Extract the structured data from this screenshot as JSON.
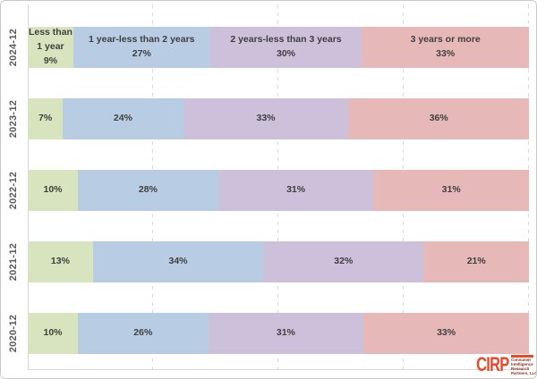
{
  "chart_data": {
    "type": "bar",
    "orientation": "horizontal",
    "stacked": true,
    "grid": "dashed-vertical",
    "gridlines_pct": [
      25,
      50,
      75,
      100
    ],
    "xlim": [
      0,
      100
    ],
    "value_suffix": "%",
    "categories": [
      "Less than 1 year",
      "1 year-less than 2 years",
      "2 years-less than 3 years",
      "3 years or more"
    ],
    "colors": [
      "#d7e4bd",
      "#b8cce4",
      "#ccc0da",
      "#e6b9b8"
    ],
    "rows": [
      {
        "label": "2024-12",
        "values": [
          9,
          27,
          30,
          33
        ]
      },
      {
        "label": "2023-12",
        "values": [
          7,
          24,
          33,
          36
        ]
      },
      {
        "label": "2022-12",
        "values": [
          10,
          28,
          31,
          31
        ]
      },
      {
        "label": "2021-12",
        "values": [
          13,
          34,
          32,
          21
        ]
      },
      {
        "label": "2020-12",
        "values": [
          10,
          26,
          31,
          33
        ]
      }
    ],
    "category_labels_shown_on_first_row_only": true
  },
  "branding": {
    "logo_text": "CIRP",
    "logo_color": "#e8492a",
    "tagline_lines": [
      "Consumer",
      "Intelligence",
      "Research",
      "Partners, LLC"
    ]
  }
}
